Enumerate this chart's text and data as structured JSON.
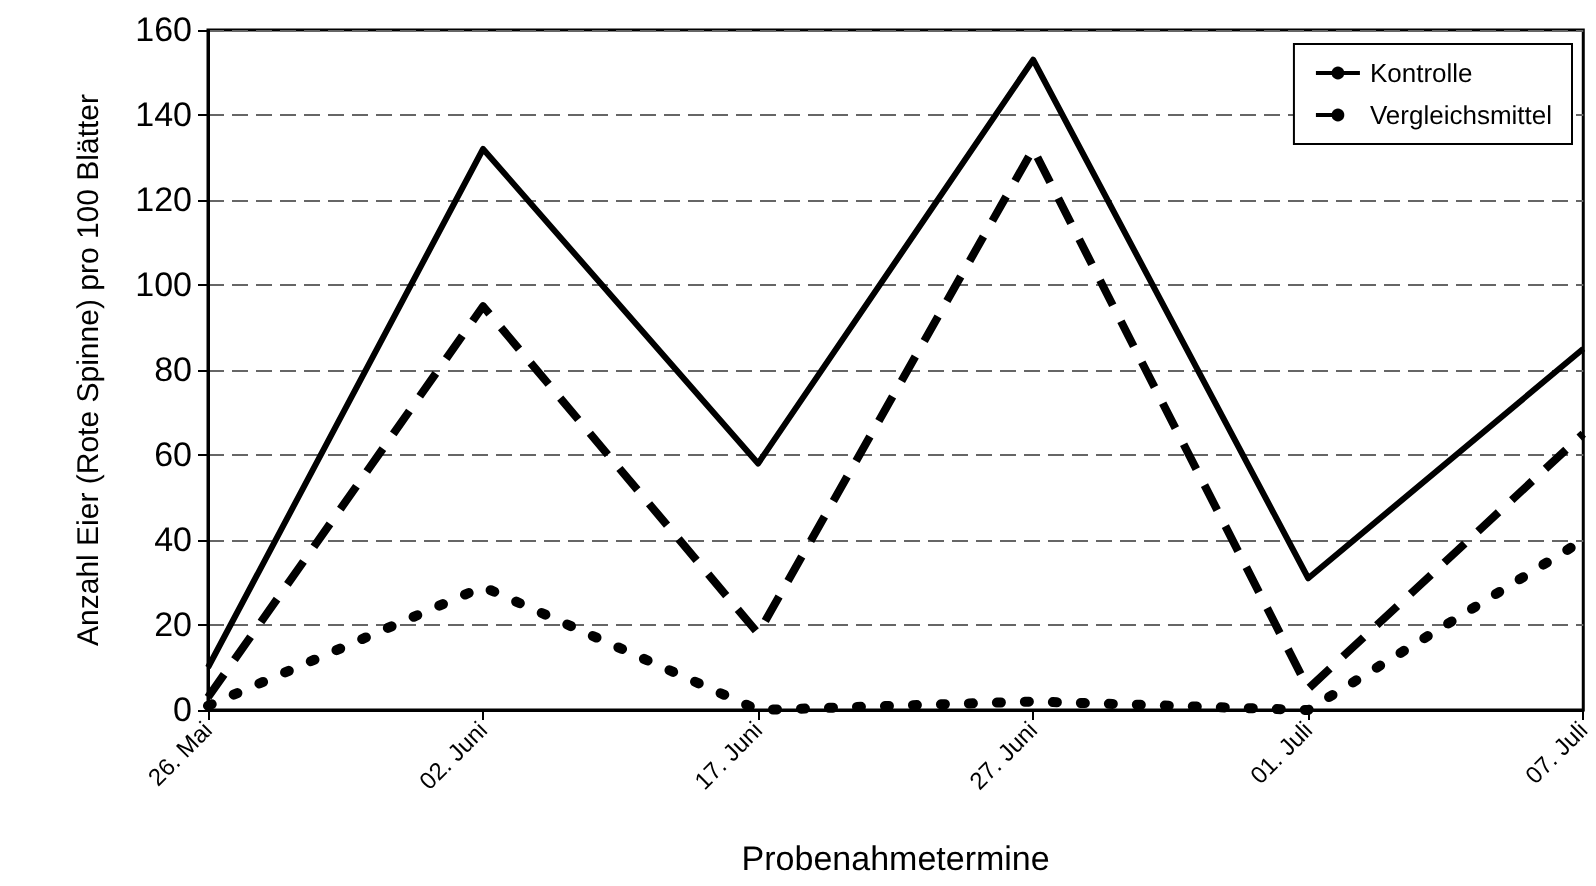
{
  "chart_data": {
    "type": "line",
    "xlabel": "Probenahmetermine",
    "ylabel": "Anzahl Eier (Rote Spinne) pro 100 Blätter",
    "categories": [
      "26. Mai",
      "02. Juni",
      "17. Juni",
      "27. Juni",
      "01. Juli",
      "07. Juli"
    ],
    "series": [
      {
        "name": "Kontrolle",
        "color": "#000000",
        "line_style": "solid",
        "values": [
          10,
          132,
          58,
          153,
          31,
          85
        ]
      },
      {
        "name": "Vergleichsmittel",
        "color": "#000000",
        "line_style": "dashed",
        "values": [
          3,
          95,
          18,
          132,
          5,
          65
        ]
      },
      {
        "color": "#000000",
        "line_style": "dotted",
        "values": [
          1,
          29,
          0,
          2,
          0,
          40
        ]
      }
    ],
    "ylim": [
      0,
      160
    ],
    "yticks": [
      0,
      20,
      40,
      60,
      80,
      100,
      120,
      140,
      160
    ],
    "grid": "y",
    "legend": "top right",
    "marker": "none"
  }
}
